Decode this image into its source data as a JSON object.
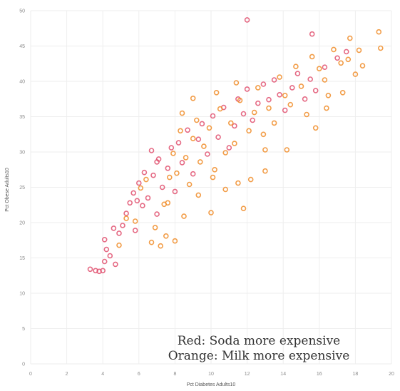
{
  "chart_data": {
    "type": "scatter",
    "xlabel": "Pct Diabetes Adults10",
    "ylabel": "Pct Obese Adults10",
    "xlim": [
      0,
      20
    ],
    "ylim": [
      0,
      50
    ],
    "x_ticks": [
      0,
      2,
      4,
      6,
      8,
      10,
      12,
      14,
      16,
      18,
      20
    ],
    "y_ticks": [
      0,
      5,
      10,
      15,
      20,
      25,
      30,
      35,
      40,
      45,
      50
    ],
    "grid": true,
    "marker": "hollow-circle",
    "annotations": [
      "Red: Soda more expensive",
      "Orange: Milk more expensive"
    ],
    "series": [
      {
        "color": "#e0506e",
        "points": [
          [
            3.3,
            13.4
          ],
          [
            3.6,
            13.2
          ],
          [
            3.8,
            13.1
          ],
          [
            4.0,
            13.2
          ],
          [
            4.1,
            14.5
          ],
          [
            4.2,
            16.2
          ],
          [
            4.1,
            17.6
          ],
          [
            4.4,
            15.3
          ],
          [
            4.7,
            14.1
          ],
          [
            4.9,
            18.5
          ],
          [
            5.1,
            19.6
          ],
          [
            5.3,
            21.3
          ],
          [
            5.5,
            22.8
          ],
          [
            5.7,
            24.2
          ],
          [
            5.8,
            18.9
          ],
          [
            6.0,
            25.6
          ],
          [
            6.2,
            22.4
          ],
          [
            6.3,
            27.1
          ],
          [
            6.5,
            23.5
          ],
          [
            6.8,
            26.7
          ],
          [
            7.0,
            21.2
          ],
          [
            7.1,
            29.0
          ],
          [
            7.3,
            25.0
          ],
          [
            7.6,
            27.7
          ],
          [
            7.8,
            30.6
          ],
          [
            8.0,
            24.4
          ],
          [
            8.2,
            31.3
          ],
          [
            8.4,
            28.5
          ],
          [
            8.7,
            33.1
          ],
          [
            9.0,
            26.9
          ],
          [
            9.3,
            31.8
          ],
          [
            9.5,
            34.0
          ],
          [
            9.8,
            29.7
          ],
          [
            10.1,
            35.1
          ],
          [
            10.4,
            32.1
          ],
          [
            10.7,
            36.3
          ],
          [
            11.0,
            30.6
          ],
          [
            11.3,
            33.7
          ],
          [
            11.5,
            37.5
          ],
          [
            11.8,
            35.4
          ],
          [
            12.0,
            38.9
          ],
          [
            12.3,
            34.5
          ],
          [
            12.6,
            36.9
          ],
          [
            12.9,
            39.6
          ],
          [
            13.2,
            37.4
          ],
          [
            13.5,
            40.2
          ],
          [
            13.8,
            38.1
          ],
          [
            14.1,
            35.9
          ],
          [
            14.5,
            39.1
          ],
          [
            14.8,
            41.1
          ],
          [
            15.2,
            37.5
          ],
          [
            15.5,
            40.3
          ],
          [
            15.8,
            38.7
          ],
          [
            16.3,
            42.0
          ],
          [
            17.0,
            43.3
          ],
          [
            17.5,
            44.2
          ],
          [
            12.0,
            48.7
          ],
          [
            15.6,
            46.7
          ],
          [
            7.0,
            28.6
          ],
          [
            6.7,
            30.2
          ],
          [
            5.9,
            23.1
          ],
          [
            4.6,
            19.2
          ]
        ]
      },
      {
        "color": "#f08c28",
        "points": [
          [
            4.9,
            16.8
          ],
          [
            5.3,
            20.6
          ],
          [
            5.8,
            20.2
          ],
          [
            6.1,
            24.9
          ],
          [
            6.4,
            26.1
          ],
          [
            6.7,
            17.2
          ],
          [
            6.9,
            19.3
          ],
          [
            7.2,
            16.7
          ],
          [
            7.4,
            22.6
          ],
          [
            7.5,
            18.1
          ],
          [
            7.7,
            26.4
          ],
          [
            7.9,
            29.8
          ],
          [
            8.1,
            27.0
          ],
          [
            8.3,
            33.0
          ],
          [
            8.6,
            29.2
          ],
          [
            8.8,
            25.4
          ],
          [
            9.0,
            31.9
          ],
          [
            9.2,
            34.5
          ],
          [
            9.4,
            28.6
          ],
          [
            9.6,
            30.8
          ],
          [
            9.9,
            33.4
          ],
          [
            10.0,
            21.4
          ],
          [
            10.2,
            27.5
          ],
          [
            10.5,
            36.1
          ],
          [
            10.8,
            29.9
          ],
          [
            11.1,
            34.1
          ],
          [
            11.3,
            31.2
          ],
          [
            11.6,
            37.3
          ],
          [
            11.8,
            22.0
          ],
          [
            12.1,
            33.0
          ],
          [
            12.4,
            35.6
          ],
          [
            12.6,
            39.1
          ],
          [
            12.9,
            32.5
          ],
          [
            13.2,
            36.2
          ],
          [
            13.5,
            34.1
          ],
          [
            13.8,
            40.6
          ],
          [
            14.1,
            38.0
          ],
          [
            14.4,
            36.7
          ],
          [
            14.7,
            42.1
          ],
          [
            15.0,
            39.3
          ],
          [
            15.3,
            35.3
          ],
          [
            15.6,
            43.5
          ],
          [
            16.0,
            41.8
          ],
          [
            16.3,
            40.2
          ],
          [
            16.8,
            44.5
          ],
          [
            17.2,
            42.6
          ],
          [
            17.6,
            43.1
          ],
          [
            18.0,
            41.0
          ],
          [
            18.2,
            44.4
          ],
          [
            18.4,
            42.2
          ],
          [
            19.3,
            47.0
          ],
          [
            19.4,
            44.7
          ],
          [
            17.7,
            46.1
          ],
          [
            16.5,
            38.0
          ],
          [
            15.8,
            33.4
          ],
          [
            14.2,
            30.3
          ],
          [
            13.0,
            27.3
          ],
          [
            12.2,
            26.1
          ],
          [
            11.5,
            25.6
          ],
          [
            10.8,
            24.7
          ],
          [
            10.1,
            26.4
          ],
          [
            9.3,
            23.9
          ],
          [
            8.5,
            20.9
          ],
          [
            8.0,
            17.4
          ],
          [
            7.6,
            22.8
          ],
          [
            9.0,
            37.6
          ],
          [
            10.3,
            38.4
          ],
          [
            11.4,
            39.8
          ],
          [
            13.0,
            30.3
          ],
          [
            8.4,
            35.5
          ],
          [
            16.4,
            36.2
          ],
          [
            17.3,
            38.4
          ]
        ]
      }
    ]
  }
}
